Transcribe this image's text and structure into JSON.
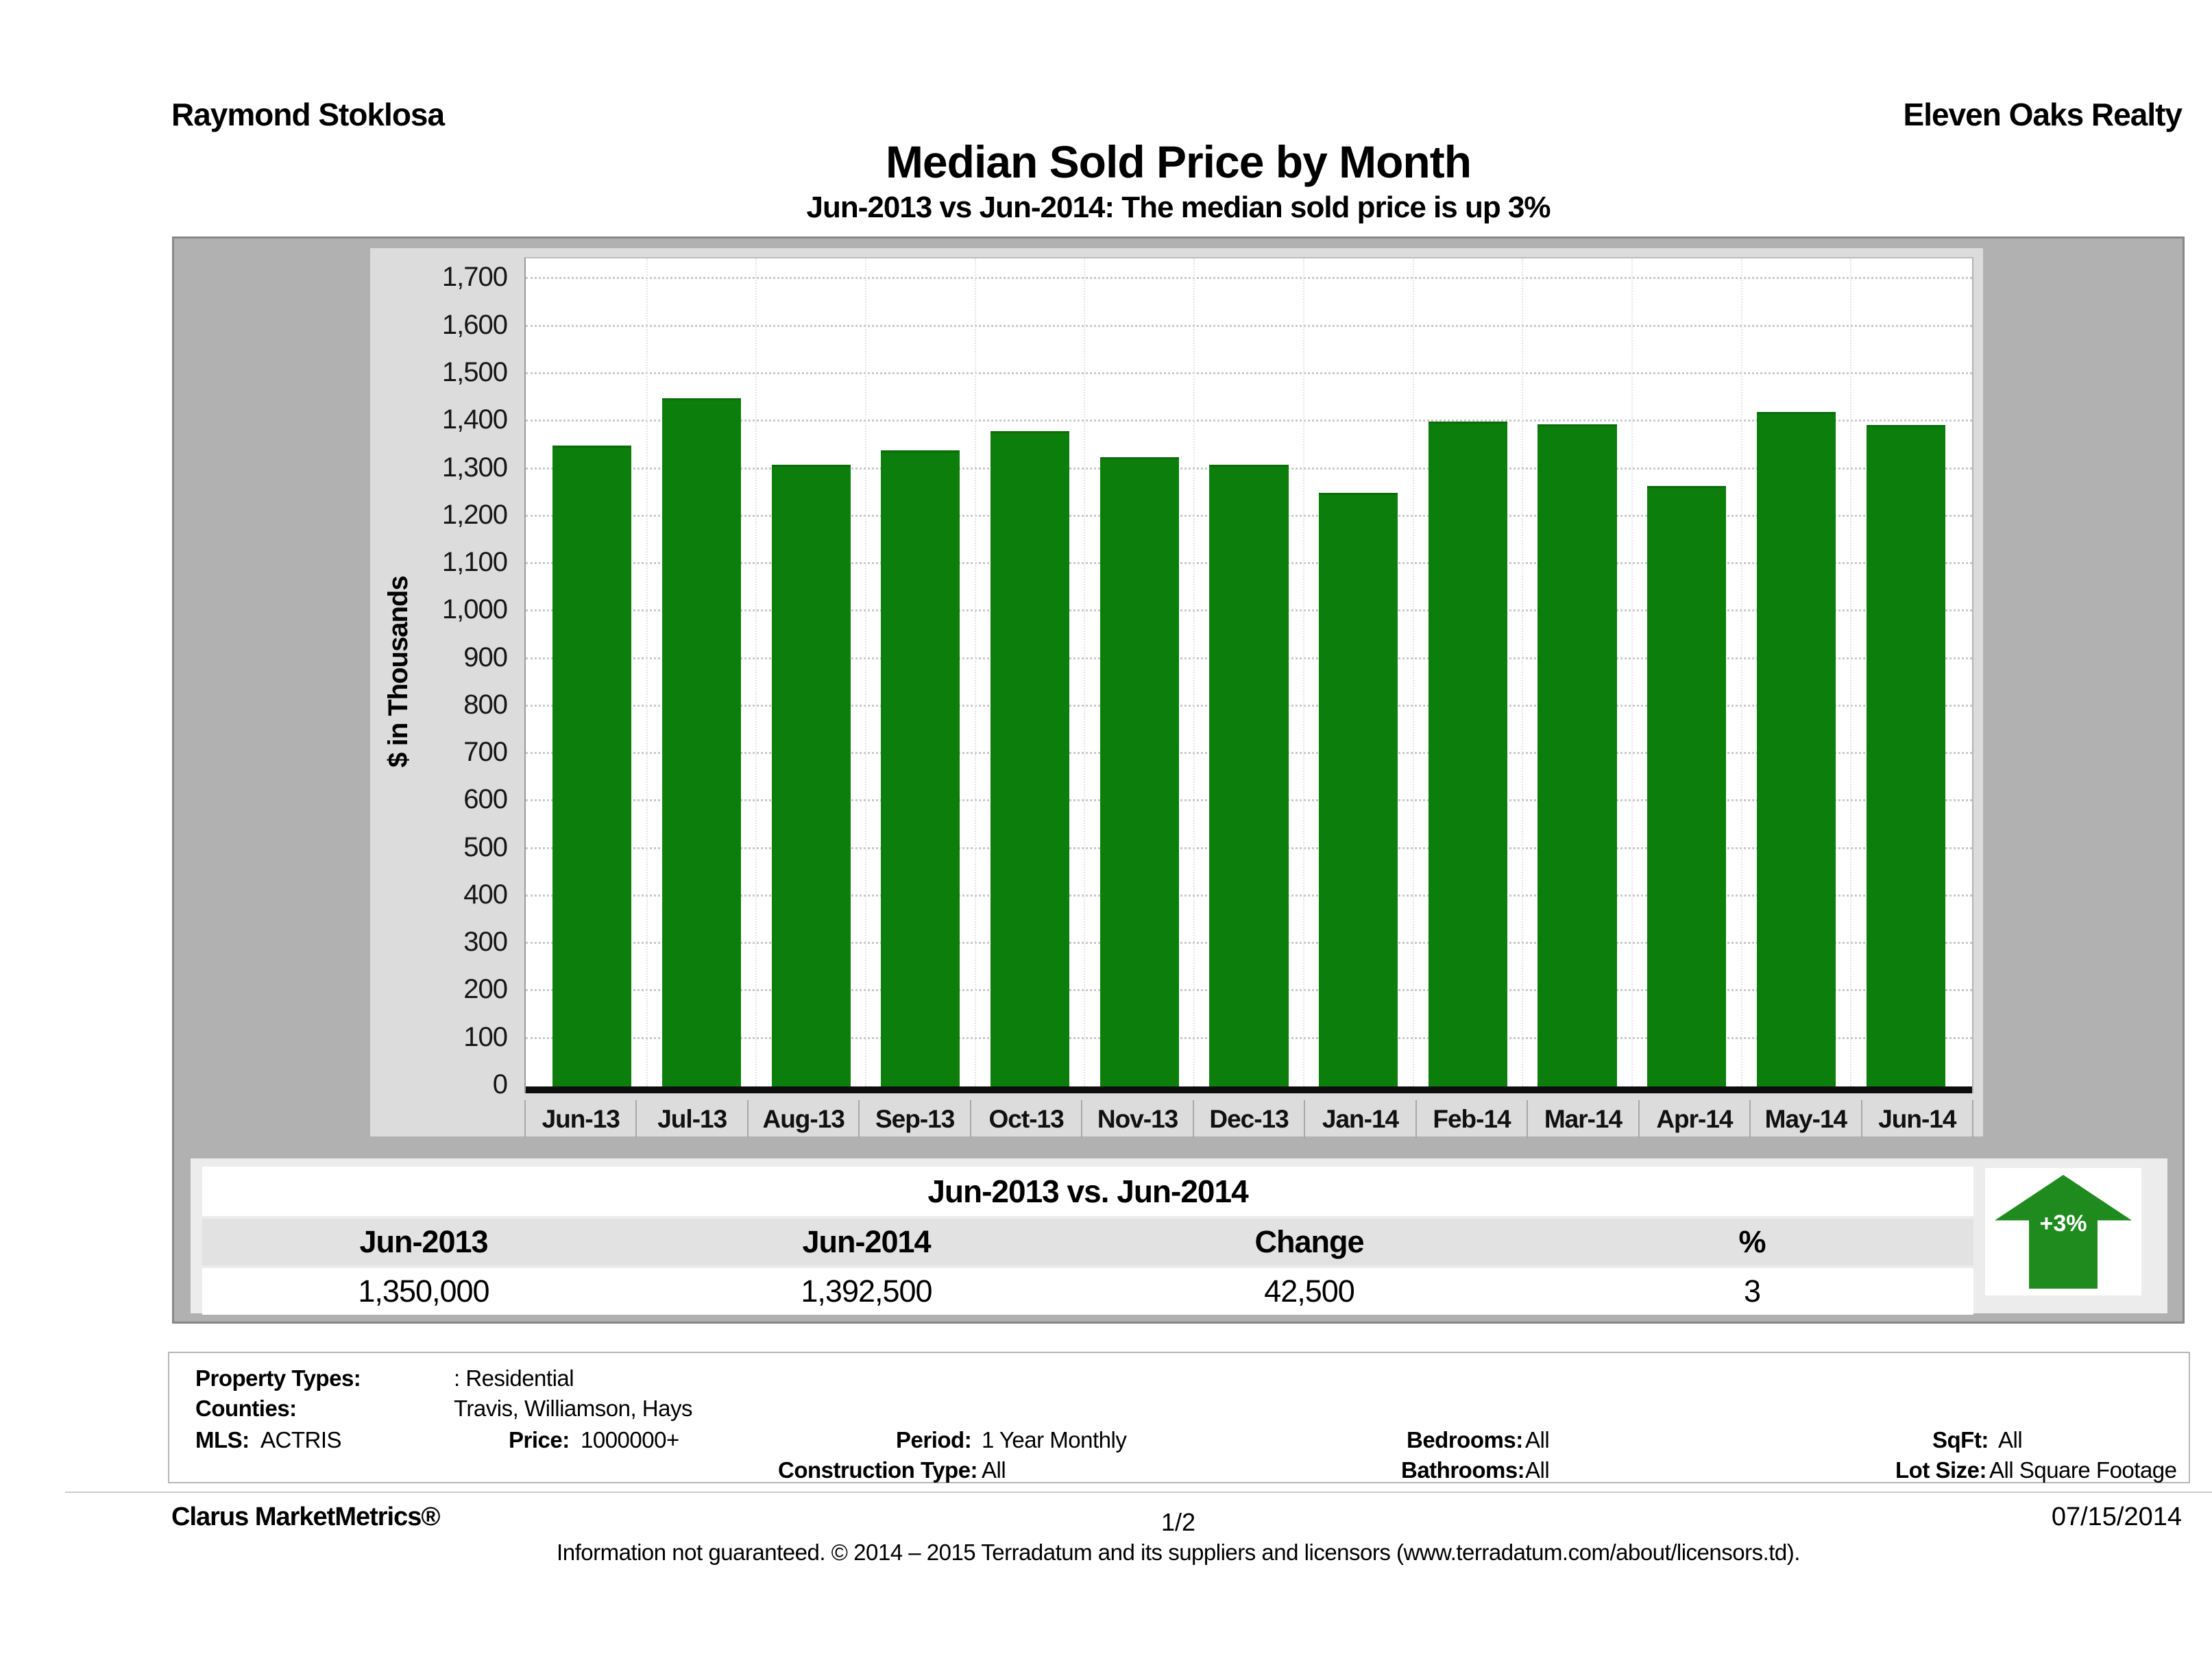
{
  "header": {
    "agent": "Raymond Stoklosa",
    "company": "Eleven Oaks Realty",
    "title": "Median Sold Price by Month",
    "subtitle": "Jun-2013 vs Jun-2014: The median sold price is up 3%"
  },
  "chart_data": {
    "type": "bar",
    "title": "Median Sold Price by Month",
    "ylabel": "$ in Thousands",
    "xlabel": "",
    "categories": [
      "Jun-13",
      "Jul-13",
      "Aug-13",
      "Sep-13",
      "Oct-13",
      "Nov-13",
      "Dec-13",
      "Jan-14",
      "Feb-14",
      "Mar-14",
      "Apr-14",
      "May-14",
      "Jun-14"
    ],
    "values": [
      1350,
      1450,
      1310,
      1340,
      1380,
      1325,
      1310,
      1250,
      1400,
      1395,
      1265,
      1420,
      1392.5
    ],
    "ylim": [
      0,
      1744
    ],
    "yticks": [
      0,
      100,
      200,
      300,
      400,
      500,
      600,
      700,
      800,
      900,
      1000,
      1100,
      1200,
      1300,
      1400,
      1500,
      1600,
      1700
    ],
    "grid": "horizontal dotted",
    "legend": "none",
    "bar_color": "#0b7e0b"
  },
  "summary_table": {
    "title": "Jun-2013 vs. Jun-2014",
    "columns": [
      "Jun-2013",
      "Jun-2014",
      "Change",
      "%"
    ],
    "values": [
      "1,350,000",
      "1,392,500",
      "42,500",
      "3"
    ],
    "badge": {
      "text": "+3%",
      "direction": "up",
      "color": "#1f8b1f"
    }
  },
  "filters": {
    "property_types": {
      "label": "Property Types:",
      "value": ": Residential"
    },
    "counties": {
      "label": "Counties:",
      "value": "Travis, Williamson, Hays"
    },
    "mls": {
      "label": "MLS:",
      "value": "ACTRIS"
    },
    "price": {
      "label": "Price:",
      "value": "1000000+"
    },
    "period": {
      "label": "Period:",
      "value": "1 Year Monthly"
    },
    "bedrooms": {
      "label": "Bedrooms:",
      "value": "All"
    },
    "sqft": {
      "label": "SqFt:",
      "value": "All"
    },
    "construction_type": {
      "label": "Construction Type:",
      "value": "All"
    },
    "bathrooms": {
      "label": "Bathrooms:",
      "value": "All"
    },
    "lot_size": {
      "label": "Lot Size:",
      "value": "All Square Footage"
    }
  },
  "footer": {
    "brand": "Clarus MarketMetrics®",
    "page": "1/2",
    "date": "07/15/2014",
    "disclaimer": "Information not guaranteed. © 2014 – 2015 Terradatum and its suppliers and licensors (www.terradatum.com/about/licensors.td)."
  }
}
